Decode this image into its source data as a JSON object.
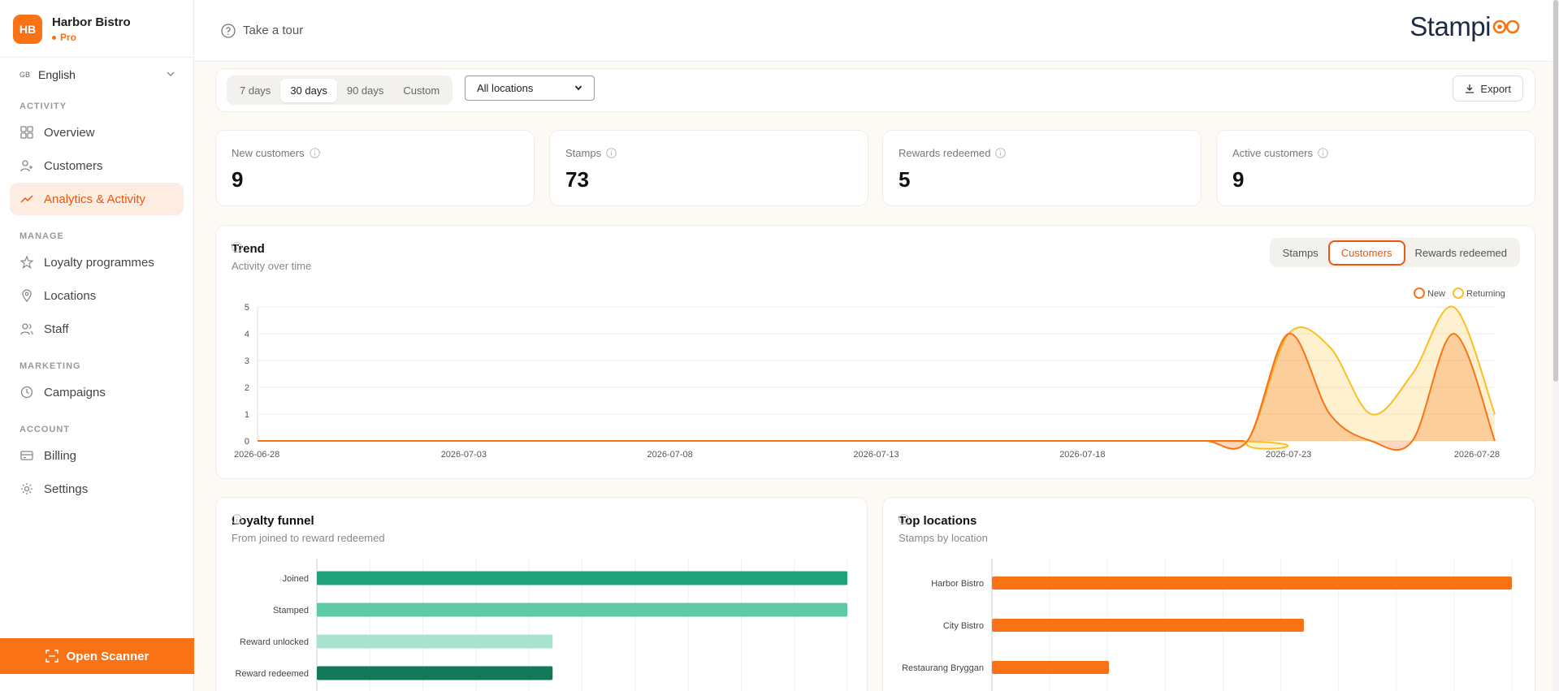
{
  "brand": {
    "initials": "HB",
    "name": "Harbor Bistro",
    "plan": "Pro"
  },
  "language": {
    "code": "GB",
    "label": "English"
  },
  "nav": {
    "activity_title": "ACTIVITY",
    "overview": "Overview",
    "customers": "Customers",
    "analytics": "Analytics & Activity",
    "manage_title": "MANAGE",
    "loyalty": "Loyalty programmes",
    "locations": "Locations",
    "staff": "Staff",
    "marketing_title": "MARKETING",
    "campaigns": "Campaigns",
    "account_title": "ACCOUNT",
    "billing": "Billing",
    "settings": "Settings"
  },
  "scanner_label": "Open Scanner",
  "header": {
    "tour": "Take a tour",
    "logo": "Stampi"
  },
  "filters": {
    "ranges": [
      "7 days",
      "30 days",
      "90 days",
      "Custom"
    ],
    "active_range": "30 days",
    "location": "All locations",
    "export": "Export"
  },
  "kpis": [
    {
      "label": "New customers",
      "value": "9"
    },
    {
      "label": "Stamps",
      "value": "73"
    },
    {
      "label": "Rewards redeemed",
      "value": "5"
    },
    {
      "label": "Active customers",
      "value": "9"
    }
  ],
  "trend": {
    "title": "Trend",
    "subtitle": "Activity over time",
    "tabs": [
      "Stamps",
      "Customers",
      "Rewards redeemed"
    ],
    "active_tab": "Customers"
  },
  "funnel": {
    "title": "Loyalty funnel",
    "subtitle": "From joined to reward redeemed"
  },
  "top_locations": {
    "title": "Top locations",
    "subtitle": "Stamps by location"
  },
  "colors": {
    "accent": "#f97316",
    "new": "#f97316",
    "returning": "#fbbf24",
    "funnel": [
      "#1fa27a",
      "#5ecba4",
      "#a7e3cd",
      "#13775a"
    ]
  },
  "chart_data": [
    {
      "type": "area",
      "title": "",
      "xlabel": "",
      "ylabel": "",
      "x_ticks": [
        "2026-06-28",
        "2026-07-03",
        "2026-07-08",
        "2026-07-13",
        "2026-07-18",
        "2026-07-23",
        "2026-07-28"
      ],
      "y_ticks": [
        "0",
        "1",
        "2",
        "3",
        "4",
        "5"
      ],
      "ylim": [
        0,
        5
      ],
      "grid": true,
      "legend": "top-right",
      "x_start": "2026-06-28",
      "x_end": "2026-07-28",
      "series": [
        {
          "name": "New",
          "points": [
            [
              "2026-06-28",
              0
            ],
            [
              "2026-07-20",
              0
            ],
            [
              "2026-07-21",
              0
            ],
            [
              "2026-07-22",
              0
            ],
            [
              "2026-07-23",
              4
            ],
            [
              "2026-07-24",
              1
            ],
            [
              "2026-07-25",
              0
            ],
            [
              "2026-07-26",
              0
            ],
            [
              "2026-07-27",
              4
            ],
            [
              "2026-07-28",
              0
            ]
          ]
        },
        {
          "name": "Returning",
          "points": [
            [
              "2026-06-28",
              0
            ],
            [
              "2026-07-21",
              0
            ],
            [
              "2026-07-22",
              0
            ],
            [
              "2026-07-23",
              4
            ],
            [
              "2026-07-24",
              3.5
            ],
            [
              "2026-07-25",
              1
            ],
            [
              "2026-07-26",
              2.5
            ],
            [
              "2026-07-27",
              5
            ],
            [
              "2026-07-28",
              1
            ]
          ]
        }
      ]
    },
    {
      "type": "bar",
      "orientation": "horizontal",
      "title": "",
      "categories": [
        "Joined",
        "Stamped",
        "Reward unlocked",
        "Reward redeemed"
      ],
      "values": [
        9,
        9,
        4,
        4
      ],
      "xlim": [
        0,
        9
      ]
    },
    {
      "type": "bar",
      "orientation": "horizontal",
      "title": "",
      "categories": [
        "Harbor Bistro",
        "City Bistro",
        "Restaurang Bryggan"
      ],
      "values": [
        40,
        24,
        9
      ],
      "xlim": [
        0,
        40
      ]
    }
  ]
}
